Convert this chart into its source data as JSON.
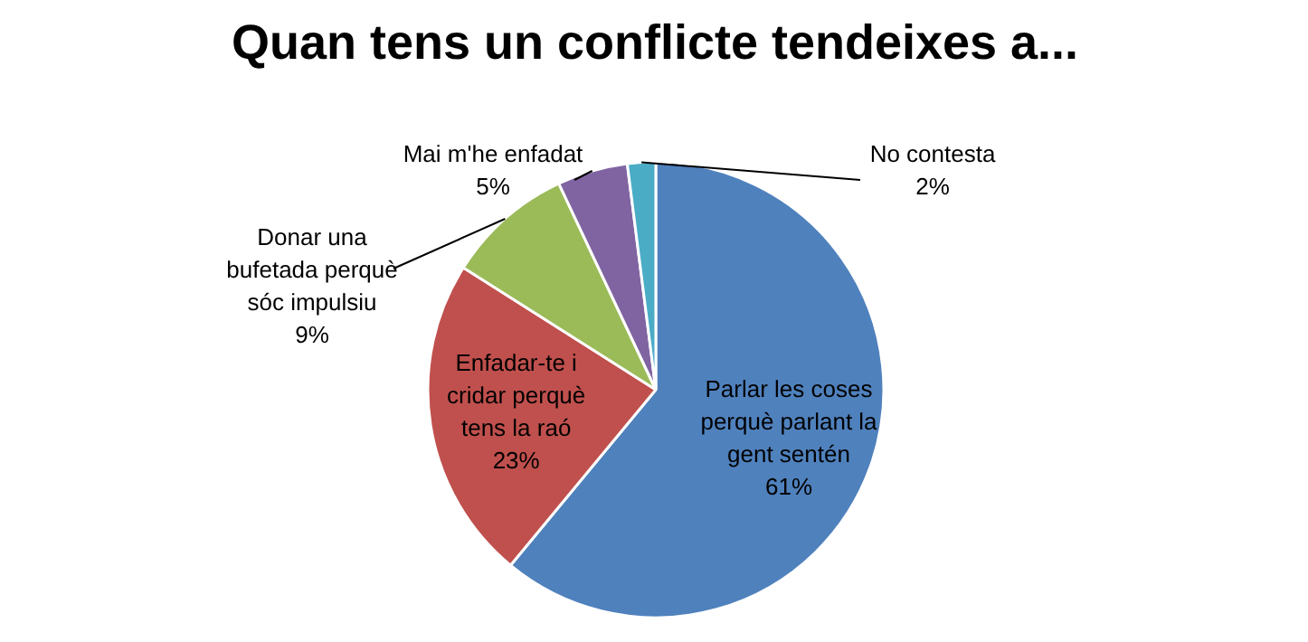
{
  "chart_data": {
    "type": "pie",
    "title": "Quan tens un conflicte tendeixes a...",
    "categories": [
      "Parlar les coses\nperquè parlant la\ngent sentén",
      "Enfadar-te i\ncridar perquè\ntens la raó",
      "Donar una\nbufetada perquè\nsóc impulsiu",
      "Mai m'he enfadat",
      "No contesta"
    ],
    "values": [
      61,
      23,
      9,
      5,
      2
    ],
    "colors": [
      "#4f81bd",
      "#c0504d",
      "#9bbb59",
      "#8064a2",
      "#4bacc6"
    ],
    "value_labels": [
      "61%",
      "23%",
      "9%",
      "5%",
      "2%"
    ]
  }
}
